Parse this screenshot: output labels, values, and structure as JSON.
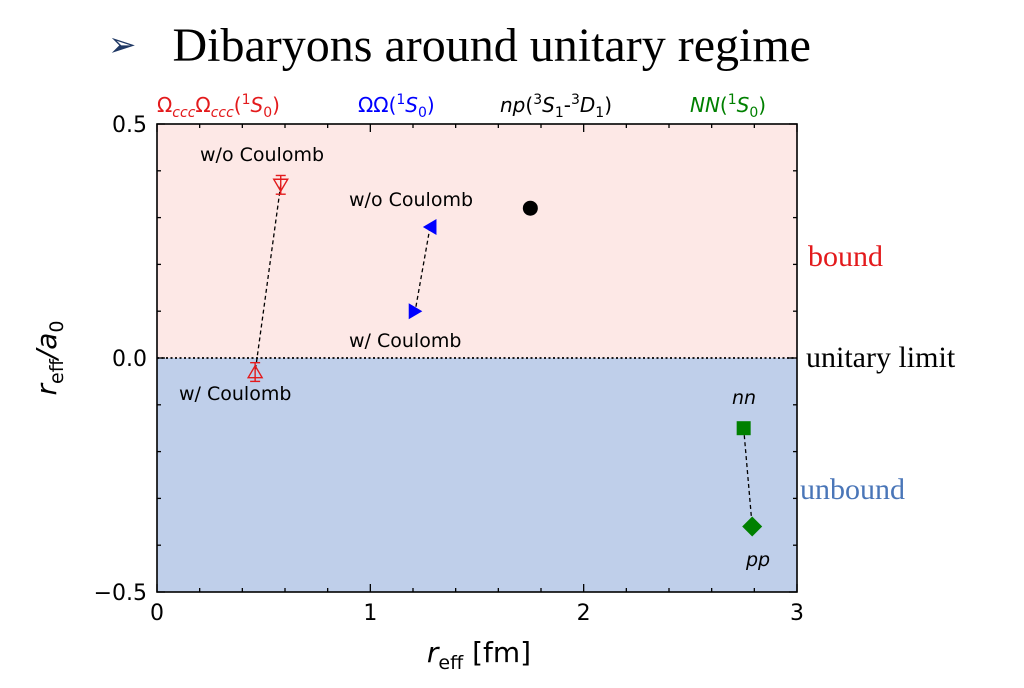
{
  "slide": {
    "bullet": "➢",
    "title": "Dibaryons around unitary regime"
  },
  "chart_data": {
    "type": "scatter",
    "title": "",
    "xlabel": {
      "main": "r",
      "sub": "eff",
      "unit": " [fm]"
    },
    "ylabel": {
      "main": "r",
      "sub1": "eff",
      "mid": "/a",
      "sub2": "0"
    },
    "xlim": [
      0,
      3
    ],
    "ylim": [
      -0.5,
      0.5
    ],
    "xticks": [
      {
        "value": 0,
        "label": "0"
      },
      {
        "value": 1,
        "label": "1"
      },
      {
        "value": 2,
        "label": "2"
      },
      {
        "value": 3,
        "label": "3"
      }
    ],
    "yticks": [
      {
        "value": -0.5,
        "label": "−0.5"
      },
      {
        "value": 0.0,
        "label": "0.0"
      },
      {
        "value": 0.5,
        "label": "0.5"
      }
    ],
    "regions": [
      {
        "label": "bound",
        "y_from": 0,
        "y_to": 0.5,
        "fill": "#fde8e6",
        "text_color": "#e31a1c"
      },
      {
        "label": "unbound",
        "y_from": -0.5,
        "y_to": 0,
        "fill": "#bfcfea",
        "text_color": "#4a76b8"
      }
    ],
    "reference_line": {
      "y": 0,
      "label": "unitary limit"
    },
    "series": [
      {
        "name": "ΩcccΩccc(1S0)",
        "color": "#e31a1c",
        "marker": "open-triangle",
        "points": [
          {
            "x": 0.58,
            "y": 0.37,
            "yerr": 0.02,
            "label": "w/o Coulomb",
            "orient": "down"
          },
          {
            "x": 0.46,
            "y": -0.03,
            "yerr": 0.02,
            "label": "w/ Coulomb",
            "orient": "up"
          }
        ]
      },
      {
        "name": "ΩΩ(1S0)",
        "color": "#0000ff",
        "marker": "filled-triangle",
        "points": [
          {
            "x": 1.28,
            "y": 0.28,
            "label": "w/o Coulomb",
            "orient": "left"
          },
          {
            "x": 1.21,
            "y": 0.1,
            "label": "w/ Coulomb",
            "orient": "right"
          }
        ]
      },
      {
        "name": "np(3S1-3D1)",
        "color": "#000000",
        "marker": "circle",
        "points": [
          {
            "x": 1.75,
            "y": 0.32,
            "label": ""
          }
        ]
      },
      {
        "name": "NN(1S0)",
        "color": "#008000",
        "marker": "square-diamond",
        "points": [
          {
            "x": 2.75,
            "y": -0.15,
            "label": "nn",
            "shape": "square"
          },
          {
            "x": 2.79,
            "y": -0.36,
            "label": "pp",
            "shape": "diamond"
          }
        ]
      }
    ]
  }
}
